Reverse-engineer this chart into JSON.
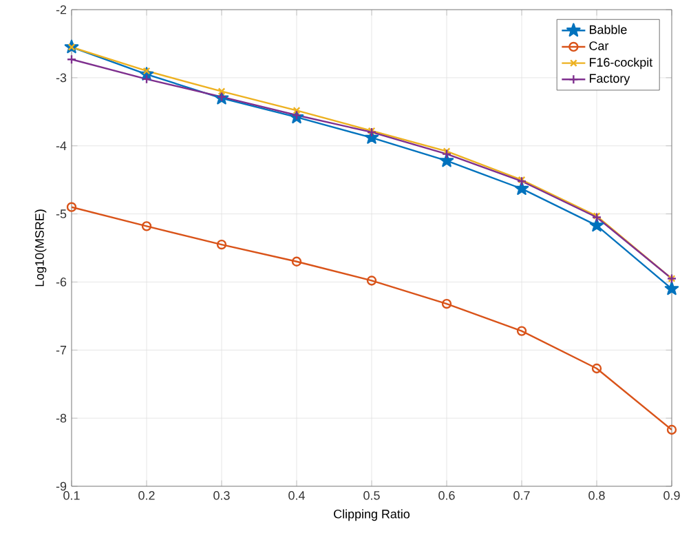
{
  "chart_data": {
    "type": "line",
    "xlabel": "Clipping Ratio",
    "ylabel": "Log10(MSRE)",
    "x": [
      0.1,
      0.2,
      0.3,
      0.4,
      0.5,
      0.6,
      0.7,
      0.8,
      0.9
    ],
    "xlim": [
      0.1,
      0.9
    ],
    "xticks": [
      0.1,
      0.2,
      0.3,
      0.4,
      0.5,
      0.6,
      0.7,
      0.8,
      0.9
    ],
    "ylim": [
      -9,
      -2
    ],
    "yticks": [
      -9,
      -8,
      -7,
      -6,
      -5,
      -4,
      -3,
      -2
    ],
    "grid": true,
    "legend": "top right",
    "line_style": "solid",
    "series": [
      {
        "name": "Babble",
        "color": "#0072bd",
        "marker": "star",
        "values": [
          -2.55,
          -2.95,
          -3.3,
          -3.58,
          -3.88,
          -4.22,
          -4.63,
          -5.17,
          -6.1
        ]
      },
      {
        "name": "Car",
        "color": "#d95319",
        "marker": "circle",
        "values": [
          -4.9,
          -5.18,
          -5.45,
          -5.7,
          -5.98,
          -6.32,
          -6.72,
          -7.27,
          -8.17
        ]
      },
      {
        "name": "F16-cockpit",
        "color": "#edb120",
        "marker": "cross",
        "values": [
          -2.55,
          -2.9,
          -3.2,
          -3.48,
          -3.78,
          -4.08,
          -4.5,
          -5.03,
          -5.95
        ]
      },
      {
        "name": "Factory",
        "color": "#7e2f8e",
        "marker": "plus",
        "values": [
          -2.73,
          -3.02,
          -3.28,
          -3.55,
          -3.8,
          -4.12,
          -4.52,
          -5.05,
          -5.95
        ]
      }
    ]
  }
}
